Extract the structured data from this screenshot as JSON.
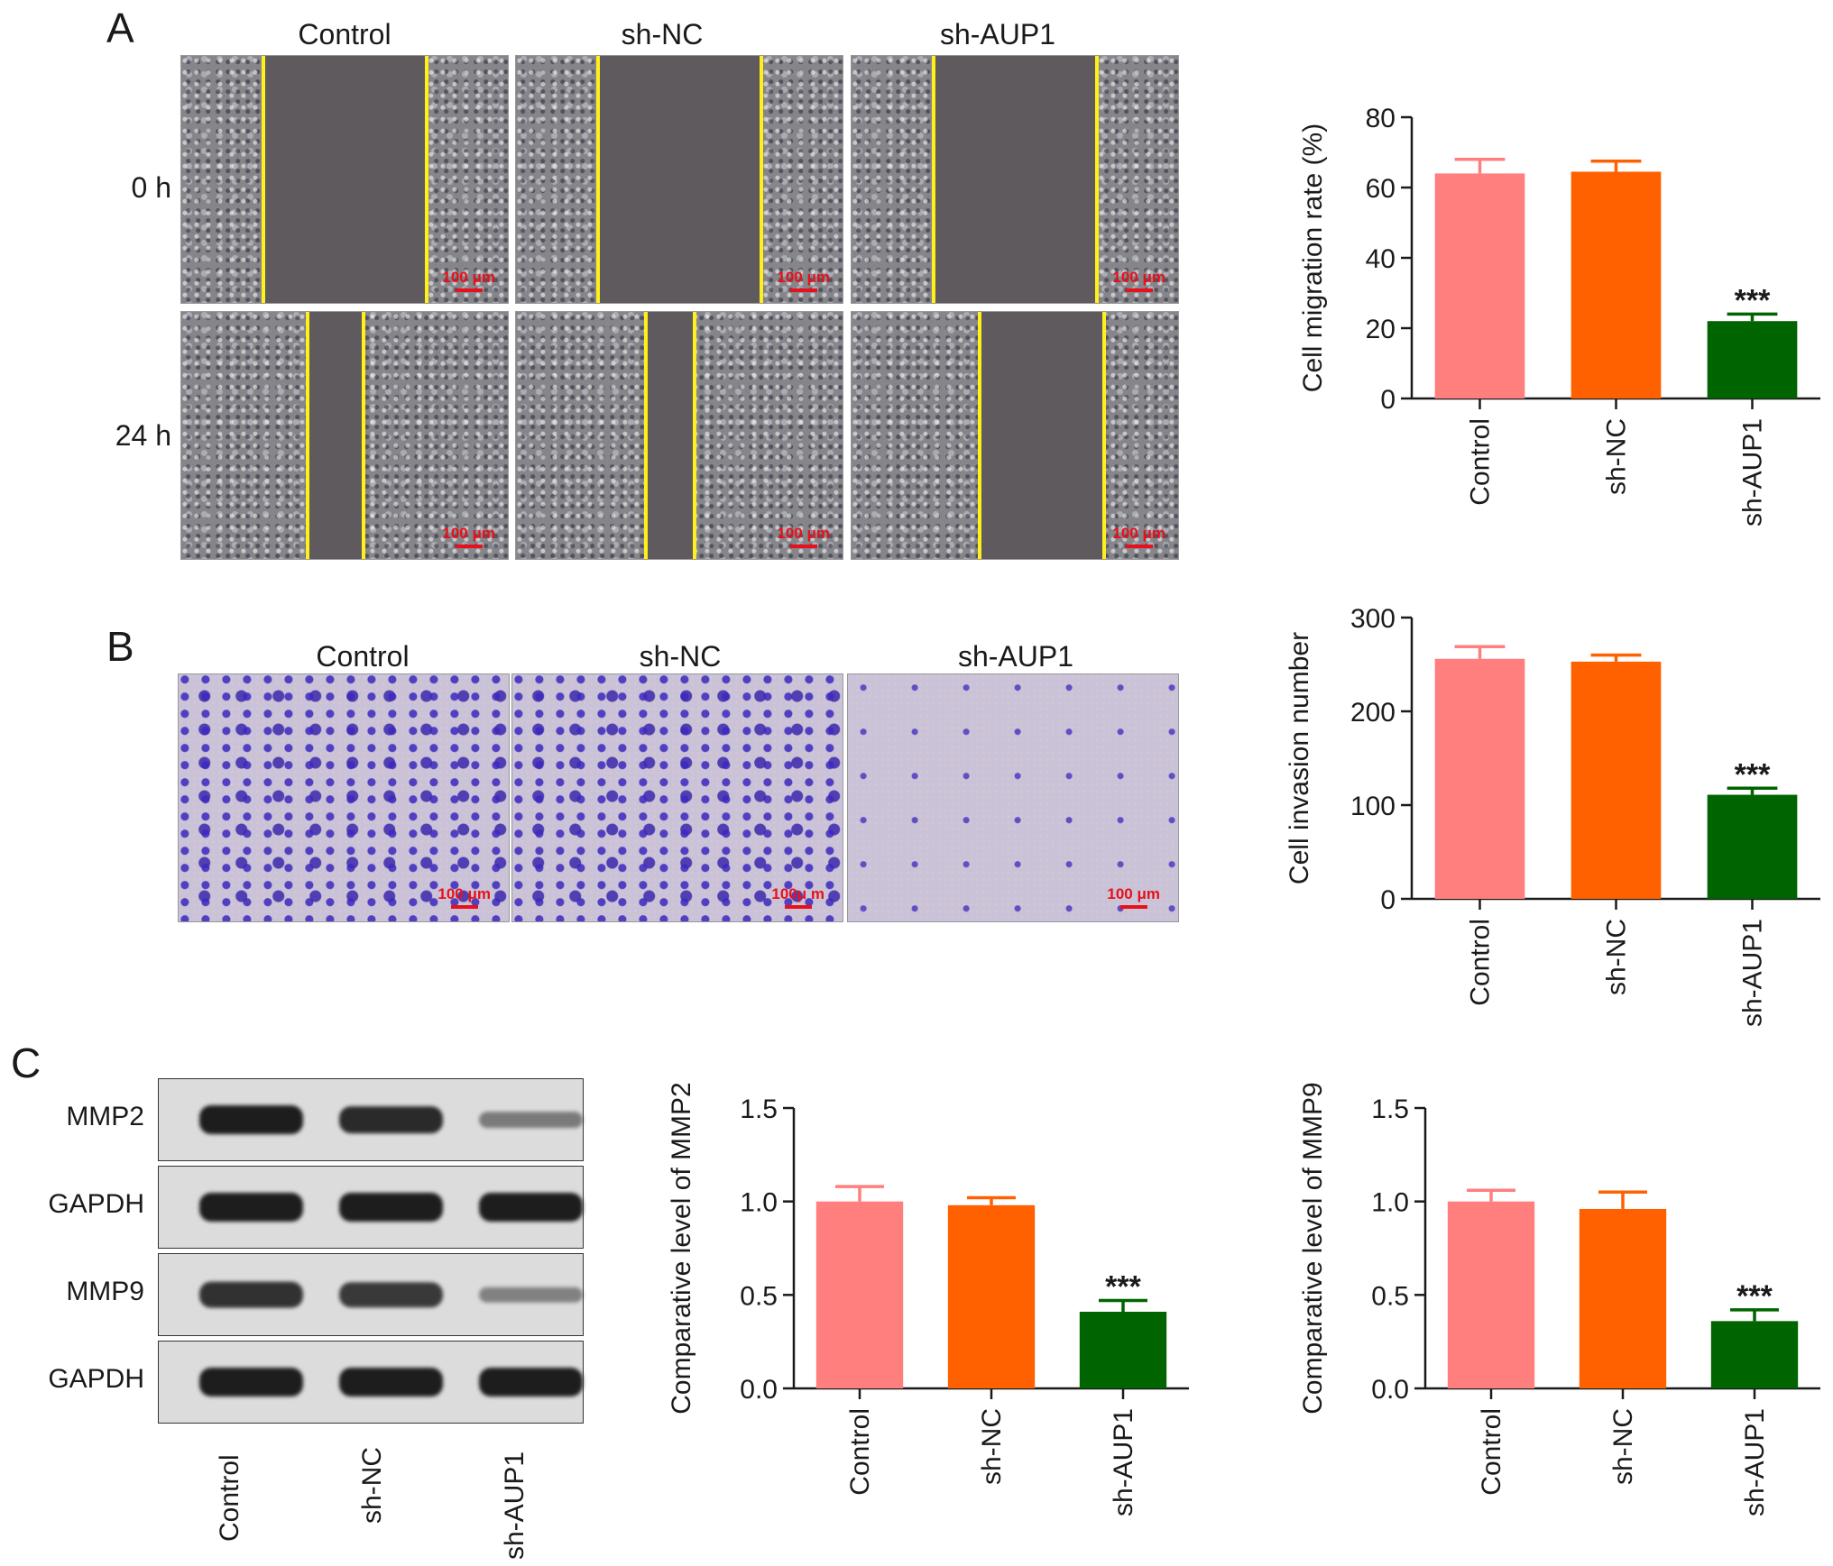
{
  "panels": {
    "A": {
      "letter": "A",
      "conditions": [
        "Control",
        "sh-NC",
        "sh-AUP1"
      ],
      "rows": [
        "0 h",
        "24 h"
      ],
      "scale_label": "100 μm",
      "gap_fraction_0h": [
        0.5,
        0.5,
        0.5
      ],
      "gap_fraction_24h": [
        0.17,
        0.15,
        0.38
      ]
    },
    "B": {
      "letter": "B",
      "conditions": [
        "Control",
        "sh-NC",
        "sh-AUP1"
      ],
      "scale_labels": [
        "100 μm",
        "100μ m",
        "100 μm"
      ]
    },
    "C": {
      "letter": "C",
      "blot_rows": [
        "MMP2",
        "GAPDH",
        "MMP9",
        "GAPDH"
      ],
      "lanes": [
        "Control",
        "sh-NC",
        "sh-AUP1"
      ],
      "band_intensity": [
        [
          1.0,
          0.9,
          0.35
        ],
        [
          1.0,
          1.0,
          1.0
        ],
        [
          0.85,
          0.8,
          0.3
        ],
        [
          1.0,
          1.0,
          1.0
        ]
      ]
    }
  },
  "chart_data": [
    {
      "type": "bar",
      "categories": [
        "Control",
        "sh-NC",
        "sh-AUP1"
      ],
      "values": [
        64,
        64.5,
        22
      ],
      "errors": [
        4,
        3,
        2
      ],
      "significance": [
        "",
        "",
        "***"
      ],
      "colors": [
        "#ff7f7f",
        "#ff6000",
        "#006400"
      ],
      "ylabel": "Cell migration rate (%)",
      "ylim": [
        0,
        80
      ],
      "yticks": [
        "0",
        "20",
        "40",
        "60",
        "80"
      ],
      "grid": false
    },
    {
      "type": "bar",
      "categories": [
        "Control",
        "sh-NC",
        "sh-AUP1"
      ],
      "values": [
        256,
        253,
        111
      ],
      "errors": [
        13,
        7,
        7
      ],
      "significance": [
        "",
        "",
        "***"
      ],
      "colors": [
        "#ff7f7f",
        "#ff6000",
        "#006400"
      ],
      "ylabel": "Cell invasion number",
      "ylim": [
        0,
        300
      ],
      "yticks": [
        "0",
        "100",
        "200",
        "300"
      ],
      "grid": false
    },
    {
      "type": "bar",
      "categories": [
        "Control",
        "sh-NC",
        "sh-AUP1"
      ],
      "values": [
        1.0,
        0.98,
        0.41
      ],
      "errors": [
        0.08,
        0.04,
        0.06
      ],
      "significance": [
        "",
        "",
        "***"
      ],
      "colors": [
        "#ff7f7f",
        "#ff6000",
        "#006400"
      ],
      "ylabel": "Comparative level of MMP2",
      "ylim": [
        0,
        1.5
      ],
      "yticks": [
        "0.0",
        "0.5",
        "1.0",
        "1.5"
      ],
      "grid": false
    },
    {
      "type": "bar",
      "categories": [
        "Control",
        "sh-NC",
        "sh-AUP1"
      ],
      "values": [
        1.0,
        0.96,
        0.36
      ],
      "errors": [
        0.06,
        0.09,
        0.06
      ],
      "significance": [
        "",
        "",
        "***"
      ],
      "colors": [
        "#ff7f7f",
        "#ff6000",
        "#006400"
      ],
      "ylabel": "Comparative level of MMP9",
      "ylim": [
        0,
        1.5
      ],
      "yticks": [
        "0.0",
        "0.5",
        "1.0",
        "1.5"
      ],
      "grid": false
    }
  ]
}
